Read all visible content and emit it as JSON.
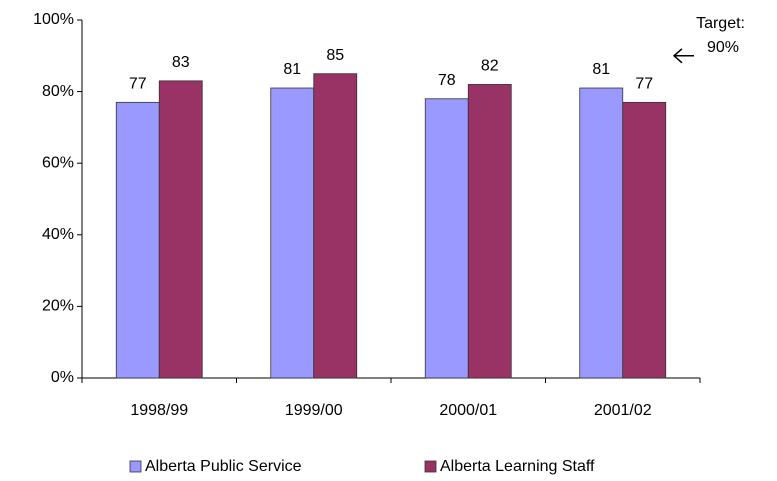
{
  "chart_data": {
    "type": "bar",
    "categories": [
      "1998/99",
      "1999/00",
      "2000/01",
      "2001/02"
    ],
    "series": [
      {
        "name": "Alberta Public Service",
        "color": "#9999ff",
        "values": [
          77,
          81,
          78,
          81
        ]
      },
      {
        "name": "Alberta Learning Staff",
        "color": "#993366",
        "values": [
          83,
          85,
          82,
          77
        ]
      }
    ],
    "ylim": [
      0,
      100
    ],
    "yticks": [
      {
        "value": 0,
        "label": "0%"
      },
      {
        "value": 20,
        "label": "20%"
      },
      {
        "value": 40,
        "label": "40%"
      },
      {
        "value": 60,
        "label": "60%"
      },
      {
        "value": 80,
        "label": "80%"
      },
      {
        "value": 100,
        "label": "100%"
      }
    ],
    "annotation": {
      "label": "Target:",
      "value": 90,
      "value_label": "90%"
    },
    "legend": "bottom"
  }
}
